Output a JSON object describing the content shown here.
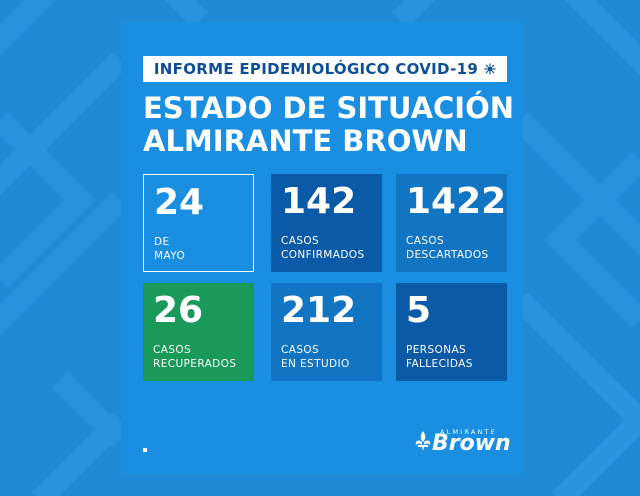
{
  "banner": {
    "text": "INFORME EPIDEMIOLÓGICO COVID-19",
    "icon": "virus-icon"
  },
  "title": {
    "line1": "ESTADO DE SITUACIÓN",
    "line2": "ALMIRANTE BROWN"
  },
  "cards": [
    {
      "number": "24",
      "line1": "DE",
      "line2": "MAYO",
      "color": "#1a8ee0"
    },
    {
      "number": "142",
      "line1": "CASOS",
      "line2": "CONFIRMADOS",
      "color": "#0b5aa8"
    },
    {
      "number": "1422",
      "line1": "CASOS",
      "line2": "DESCARTADOS",
      "color": "#1175c4"
    },
    {
      "number": "26",
      "line1": "CASOS",
      "line2": "RECUPERADOS",
      "color": "#1a9a5a"
    },
    {
      "number": "212",
      "line1": "CASOS",
      "line2": "EN ESTUDIO",
      "color": "#1175c4"
    },
    {
      "number": "5",
      "line1": "PERSONAS",
      "line2": "FALLECIDAS",
      "color": "#0b5aa8"
    }
  ],
  "logo": {
    "top": "ALMIRANTE",
    "main": "Brown",
    "icon": "fleur-de-lis-icon"
  },
  "colors": {
    "background": "#1f8ad6",
    "panel": "#1a8ee0",
    "banner_text": "#0d4f97"
  }
}
